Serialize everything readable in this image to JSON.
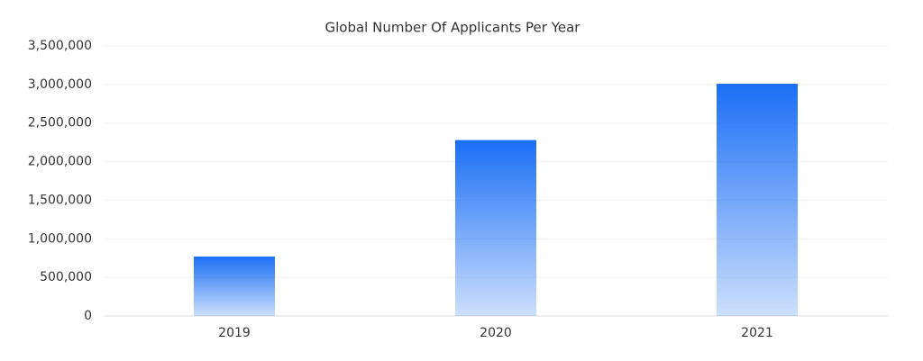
{
  "chart_data": {
    "type": "bar",
    "title": "Global Number Of Applicants Per Year",
    "categories": [
      "2019",
      "2020",
      "2021"
    ],
    "values": [
      770000,
      2280000,
      3010000
    ],
    "color": "#1a6ff5",
    "ylim": [
      0,
      3500000
    ],
    "yticks": [
      0,
      {
        "value": 500000,
        "label": "500,000"
      },
      {
        "value": 1000000,
        "label": "1,000,000"
      },
      {
        "value": 1500000,
        "label": "1,500,000"
      },
      {
        "value": 2000000,
        "label": "2,000,000"
      },
      {
        "value": 2500000,
        "label": "2,500,000"
      },
      {
        "value": 3000000,
        "label": "3,000,000"
      },
      {
        "value": 3500000,
        "label": "3,500,000"
      }
    ],
    "grid": true
  }
}
